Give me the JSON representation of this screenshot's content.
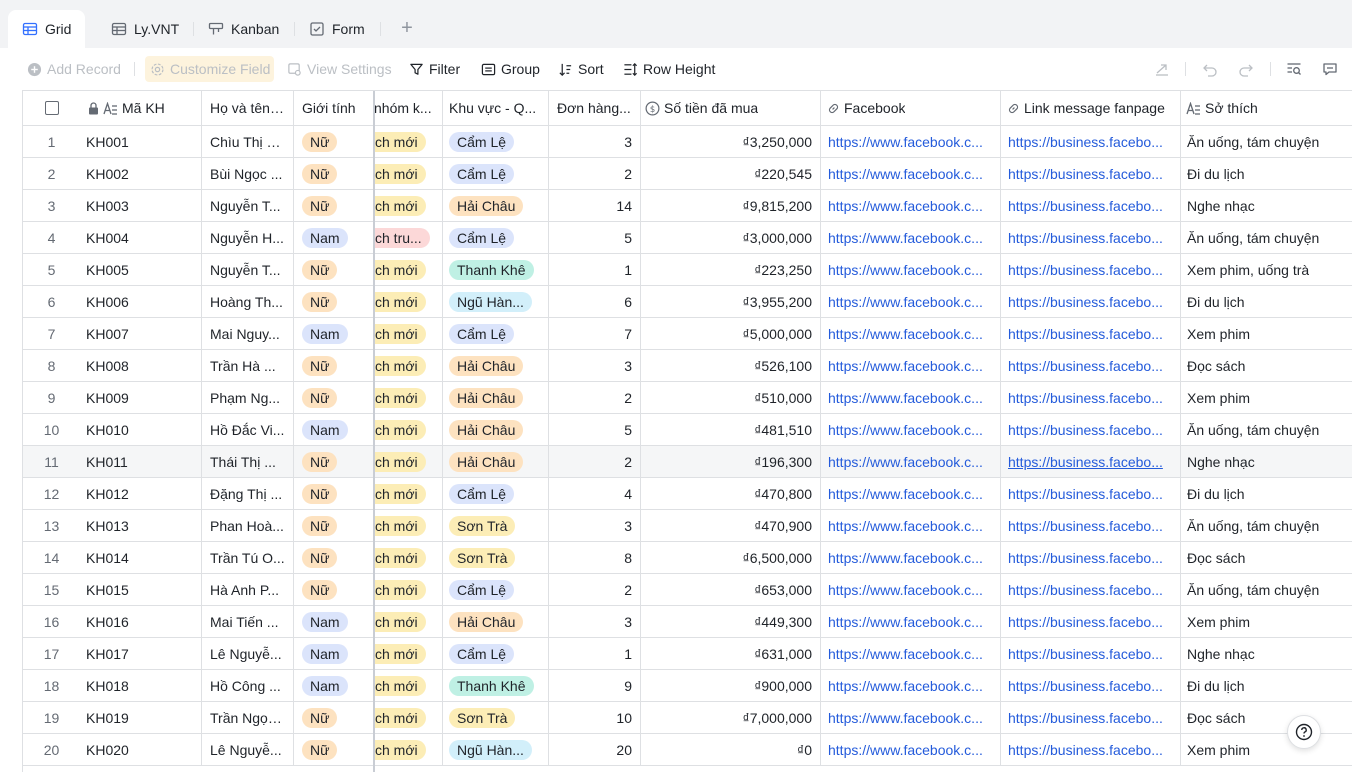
{
  "tabs": [
    {
      "label": "Grid",
      "icon": "grid-icon",
      "active": true
    },
    {
      "label": "Ly.VNT",
      "icon": "grid-icon",
      "active": false
    },
    {
      "label": "Kanban",
      "icon": "kanban-icon",
      "active": false
    },
    {
      "label": "Form",
      "icon": "form-icon",
      "active": false
    }
  ],
  "toolbar": {
    "add_record": "Add Record",
    "customize_field": "Customize Field",
    "view_settings": "View Settings",
    "filter": "Filter",
    "group": "Group",
    "sort": "Sort",
    "row_height": "Row Height"
  },
  "columns": {
    "ma_kh": "Mã KH",
    "ho_ten": "Họ và tên ...",
    "gioi_tinh": "Giới tính",
    "nhom": "nhóm k...",
    "khu_vuc": "Khu vực - Q...",
    "don_hang": "Đơn hàng...",
    "so_tien": "Số tiền đã mua",
    "facebook": "Facebook",
    "link_message": "Link message fanpage",
    "so_thich": "Sở thích"
  },
  "rows": [
    {
      "idx": "1",
      "ma": "KH001",
      "ten": "Chìu Thị S...",
      "gt": "Nữ",
      "nhom": "ch mới",
      "kv": "Cẩm Lệ",
      "dh": "3",
      "tien": "₫3,250,000",
      "fb": "https://www.facebook.c...",
      "msg": "https://business.facebo...",
      "st": "Ăn uống, tám chuyện"
    },
    {
      "idx": "2",
      "ma": "KH002",
      "ten": "Bùi Ngọc ...",
      "gt": "Nữ",
      "nhom": "ch mới",
      "kv": "Cẩm Lệ",
      "dh": "2",
      "tien": "₫220,545",
      "fb": "https://www.facebook.c...",
      "msg": "https://business.facebo...",
      "st": "Đi du lịch"
    },
    {
      "idx": "3",
      "ma": "KH003",
      "ten": "Nguyễn T...",
      "gt": "Nữ",
      "nhom": "ch mới",
      "kv": "Hải Châu",
      "dh": "14",
      "tien": "₫9,815,200",
      "fb": "https://www.facebook.c...",
      "msg": "https://business.facebo...",
      "st": "Nghe nhạc"
    },
    {
      "idx": "4",
      "ma": "KH004",
      "ten": "Nguyễn H...",
      "gt": "Nam",
      "nhom": "ch tru...",
      "kv": "Cẩm Lệ",
      "dh": "5",
      "tien": "₫3,000,000",
      "fb": "https://www.facebook.c...",
      "msg": "https://business.facebo...",
      "st": "Ăn uống, tám chuyện"
    },
    {
      "idx": "5",
      "ma": "KH005",
      "ten": "Nguyễn T...",
      "gt": "Nữ",
      "nhom": "ch mới",
      "kv": "Thanh Khê",
      "dh": "1",
      "tien": "₫223,250",
      "fb": "https://www.facebook.c...",
      "msg": "https://business.facebo...",
      "st": "Xem phim, uống trà"
    },
    {
      "idx": "6",
      "ma": "KH006",
      "ten": "Hoàng Th...",
      "gt": "Nữ",
      "nhom": "ch mới",
      "kv": "Ngũ Hàn...",
      "dh": "6",
      "tien": "₫3,955,200",
      "fb": "https://www.facebook.c...",
      "msg": "https://business.facebo...",
      "st": "Đi du lịch"
    },
    {
      "idx": "7",
      "ma": "KH007",
      "ten": "Mai Nguy...",
      "gt": "Nam",
      "nhom": "ch mới",
      "kv": "Cẩm Lệ",
      "dh": "7",
      "tien": "₫5,000,000",
      "fb": "https://www.facebook.c...",
      "msg": "https://business.facebo...",
      "st": "Xem phim"
    },
    {
      "idx": "8",
      "ma": "KH008",
      "ten": "Trần Hà ...",
      "gt": "Nữ",
      "nhom": "ch mới",
      "kv": "Hải Châu",
      "dh": "3",
      "tien": "₫526,100",
      "fb": "https://www.facebook.c...",
      "msg": "https://business.facebo...",
      "st": "Đọc sách"
    },
    {
      "idx": "9",
      "ma": "KH009",
      "ten": "Phạm Ng...",
      "gt": "Nữ",
      "nhom": "ch mới",
      "kv": "Hải Châu",
      "dh": "2",
      "tien": "₫510,000",
      "fb": "https://www.facebook.c...",
      "msg": "https://business.facebo...",
      "st": "Xem phim"
    },
    {
      "idx": "10",
      "ma": "KH010",
      "ten": "Hồ Đắc Vi...",
      "gt": "Nam",
      "nhom": "ch mới",
      "kv": "Hải Châu",
      "dh": "5",
      "tien": "₫481,510",
      "fb": "https://www.facebook.c...",
      "msg": "https://business.facebo...",
      "st": "Ăn uống, tám chuyện"
    },
    {
      "idx": "11",
      "ma": "KH011",
      "ten": "Thái Thị ...",
      "gt": "Nữ",
      "nhom": "ch mới",
      "kv": "Hải Châu",
      "dh": "2",
      "tien": "₫196,300",
      "fb": "https://www.facebook.c...",
      "msg": "https://business.facebo...",
      "st": "Nghe nhạc"
    },
    {
      "idx": "12",
      "ma": "KH012",
      "ten": "Đặng Thị ...",
      "gt": "Nữ",
      "nhom": "ch mới",
      "kv": "Cẩm Lệ",
      "dh": "4",
      "tien": "₫470,800",
      "fb": "https://www.facebook.c...",
      "msg": "https://business.facebo...",
      "st": "Đi du lịch"
    },
    {
      "idx": "13",
      "ma": "KH013",
      "ten": "Phan Hoà...",
      "gt": "Nữ",
      "nhom": "ch mới",
      "kv": "Sơn Trà",
      "dh": "3",
      "tien": "₫470,900",
      "fb": "https://www.facebook.c...",
      "msg": "https://business.facebo...",
      "st": "Ăn uống, tám chuyện"
    },
    {
      "idx": "14",
      "ma": "KH014",
      "ten": "Trần Tú O...",
      "gt": "Nữ",
      "nhom": "ch mới",
      "kv": "Sơn Trà",
      "dh": "8",
      "tien": "₫6,500,000",
      "fb": "https://www.facebook.c...",
      "msg": "https://business.facebo...",
      "st": "Đọc sách"
    },
    {
      "idx": "15",
      "ma": "KH015",
      "ten": "Hà Anh P...",
      "gt": "Nữ",
      "nhom": "ch mới",
      "kv": "Cẩm Lệ",
      "dh": "2",
      "tien": "₫653,000",
      "fb": "https://www.facebook.c...",
      "msg": "https://business.facebo...",
      "st": "Ăn uống, tám chuyện"
    },
    {
      "idx": "16",
      "ma": "KH016",
      "ten": "Mai Tiến ...",
      "gt": "Nam",
      "nhom": "ch mới",
      "kv": "Hải Châu",
      "dh": "3",
      "tien": "₫449,300",
      "fb": "https://www.facebook.c...",
      "msg": "https://business.facebo...",
      "st": "Xem phim"
    },
    {
      "idx": "17",
      "ma": "KH017",
      "ten": "Lê Nguyễ...",
      "gt": "Nam",
      "nhom": "ch mới",
      "kv": "Cẩm Lệ",
      "dh": "1",
      "tien": "₫631,000",
      "fb": "https://www.facebook.c...",
      "msg": "https://business.facebo...",
      "st": "Nghe nhạc"
    },
    {
      "idx": "18",
      "ma": "KH018",
      "ten": "Hồ Công ...",
      "gt": "Nam",
      "nhom": "ch mới",
      "kv": "Thanh Khê",
      "dh": "9",
      "tien": "₫900,000",
      "fb": "https://www.facebook.c...",
      "msg": "https://business.facebo...",
      "st": "Đi du lịch"
    },
    {
      "idx": "19",
      "ma": "KH019",
      "ten": "Trần Ngọc...",
      "gt": "Nữ",
      "nhom": "ch mới",
      "kv": "Sơn Trà",
      "dh": "10",
      "tien": "₫7,000,000",
      "fb": "https://www.facebook.c...",
      "msg": "https://business.facebo...",
      "st": "Đọc sách"
    },
    {
      "idx": "20",
      "ma": "KH020",
      "ten": "Lê Nguyễ...",
      "gt": "Nữ",
      "nhom": "ch mới",
      "kv": "Ngũ Hàn...",
      "dh": "20",
      "tien": "₫0",
      "fb": "https://www.facebook.c...",
      "msg": "https://business.facebo...",
      "st": "Xem phim"
    }
  ],
  "colors": {
    "accent": "#3370ff",
    "link": "#245bdb",
    "tag_nu": "#fde2c0",
    "tag_nam": "#dbe4fb",
    "tag_nhom_moi": "#fcedb6",
    "tag_nhom_tru": "#fcd8d8"
  }
}
